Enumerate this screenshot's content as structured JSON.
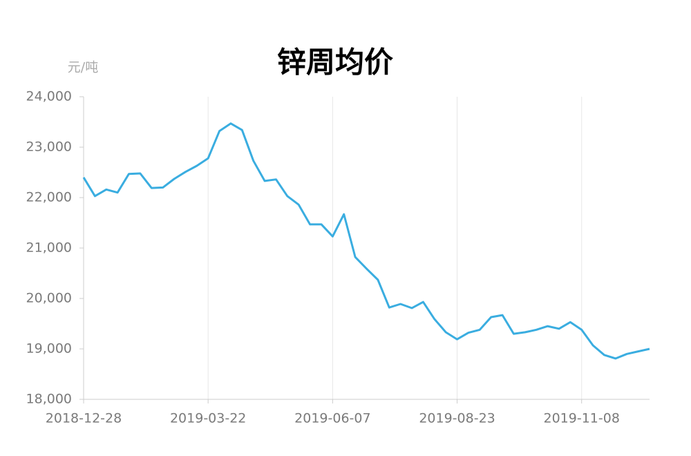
{
  "chart_data": {
    "type": "line",
    "title": "锌周均价",
    "y_axis_label": "元/吨",
    "categories": [
      "2018-12-28",
      null,
      null,
      null,
      null,
      null,
      null,
      null,
      null,
      null,
      null,
      "2019-03-22",
      null,
      null,
      null,
      null,
      null,
      null,
      null,
      null,
      null,
      null,
      "2019-06-07",
      null,
      null,
      null,
      null,
      null,
      null,
      null,
      null,
      null,
      null,
      "2019-08-23",
      null,
      null,
      null,
      null,
      null,
      null,
      null,
      null,
      null,
      null,
      "2019-11-08",
      null,
      null,
      null,
      null,
      null,
      null
    ],
    "series": [
      {
        "name": "锌周均价",
        "color": "#3aade0",
        "values": [
          22400,
          22030,
          22160,
          22100,
          22470,
          22480,
          22190,
          22200,
          22370,
          22510,
          22630,
          22780,
          23320,
          23470,
          23340,
          22730,
          22330,
          22360,
          22030,
          21860,
          21470,
          21470,
          21230,
          21670,
          20820,
          20590,
          20370,
          19820,
          19890,
          19810,
          19930,
          19590,
          19330,
          19190,
          19320,
          19380,
          19630,
          19670,
          19300,
          19330,
          19380,
          19450,
          19400,
          19530,
          19380,
          19070,
          18880,
          18810,
          18900,
          18950,
          19000
        ]
      }
    ],
    "ylim": [
      18000,
      24000
    ],
    "yticks": [
      {
        "value": 18000,
        "label": "18,000"
      },
      {
        "value": 19000,
        "label": "19,000"
      },
      {
        "value": 20000,
        "label": "20,000"
      },
      {
        "value": 21000,
        "label": "21,000"
      },
      {
        "value": 22000,
        "label": "22,000"
      },
      {
        "value": 23000,
        "label": "23,000"
      },
      {
        "value": 24000,
        "label": "24,000"
      }
    ],
    "grid": true
  }
}
